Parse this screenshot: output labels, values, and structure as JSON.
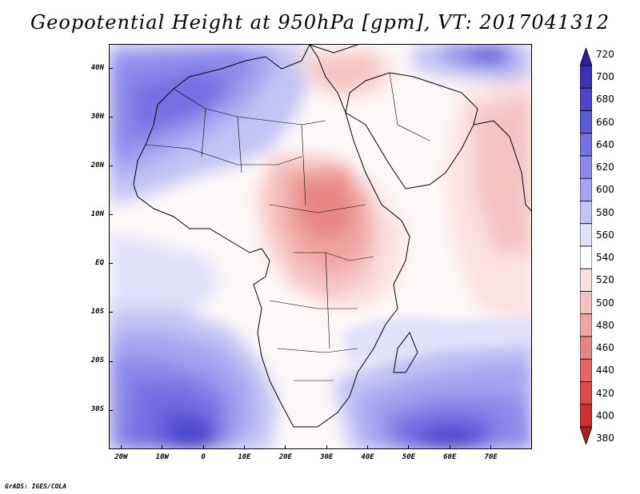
{
  "title": "Geopotential Height at 950hPa [gpm], VT: 2017041312",
  "footer": "GrADS: IGES/COLA",
  "map": {
    "lon_range": [
      -23,
      80
    ],
    "lat_range": [
      -38,
      45
    ],
    "lon_ticks": [
      {
        "value": -20,
        "label": "20W"
      },
      {
        "value": -10,
        "label": "10W"
      },
      {
        "value": 0,
        "label": "0"
      },
      {
        "value": 10,
        "label": "10E"
      },
      {
        "value": 20,
        "label": "20E"
      },
      {
        "value": 30,
        "label": "30E"
      },
      {
        "value": 40,
        "label": "40E"
      },
      {
        "value": 50,
        "label": "50E"
      },
      {
        "value": 60,
        "label": "60E"
      },
      {
        "value": 70,
        "label": "70E"
      }
    ],
    "lat_ticks": [
      {
        "value": 40,
        "label": "40N"
      },
      {
        "value": 30,
        "label": "30N"
      },
      {
        "value": 20,
        "label": "20N"
      },
      {
        "value": 10,
        "label": "10N"
      },
      {
        "value": 0,
        "label": "EQ"
      },
      {
        "value": -10,
        "label": "10S"
      },
      {
        "value": -20,
        "label": "20S"
      },
      {
        "value": -30,
        "label": "30S"
      }
    ]
  },
  "colorbar": {
    "labels": [
      "720",
      "700",
      "680",
      "660",
      "640",
      "620",
      "600",
      "580",
      "560",
      "540",
      "520",
      "500",
      "480",
      "460",
      "440",
      "420",
      "400",
      "380"
    ],
    "colors": {
      "c720": "#2c1f9a",
      "c700": "#3a31b3",
      "c680": "#4a45c9",
      "c660": "#5e5bd8",
      "c640": "#7471e3",
      "c620": "#8c8aea",
      "c600": "#a6a5f0",
      "c580": "#c3c3f5",
      "c560": "#e1e1fa",
      "c540": "#ffffff",
      "c520": "#fbe1e0",
      "c500": "#f5c4c2",
      "c480": "#efa6a3",
      "c460": "#e88683",
      "c440": "#e26763",
      "c420": "#d94b47",
      "c400": "#c9302e",
      "c380": "#b01c1c"
    }
  }
}
